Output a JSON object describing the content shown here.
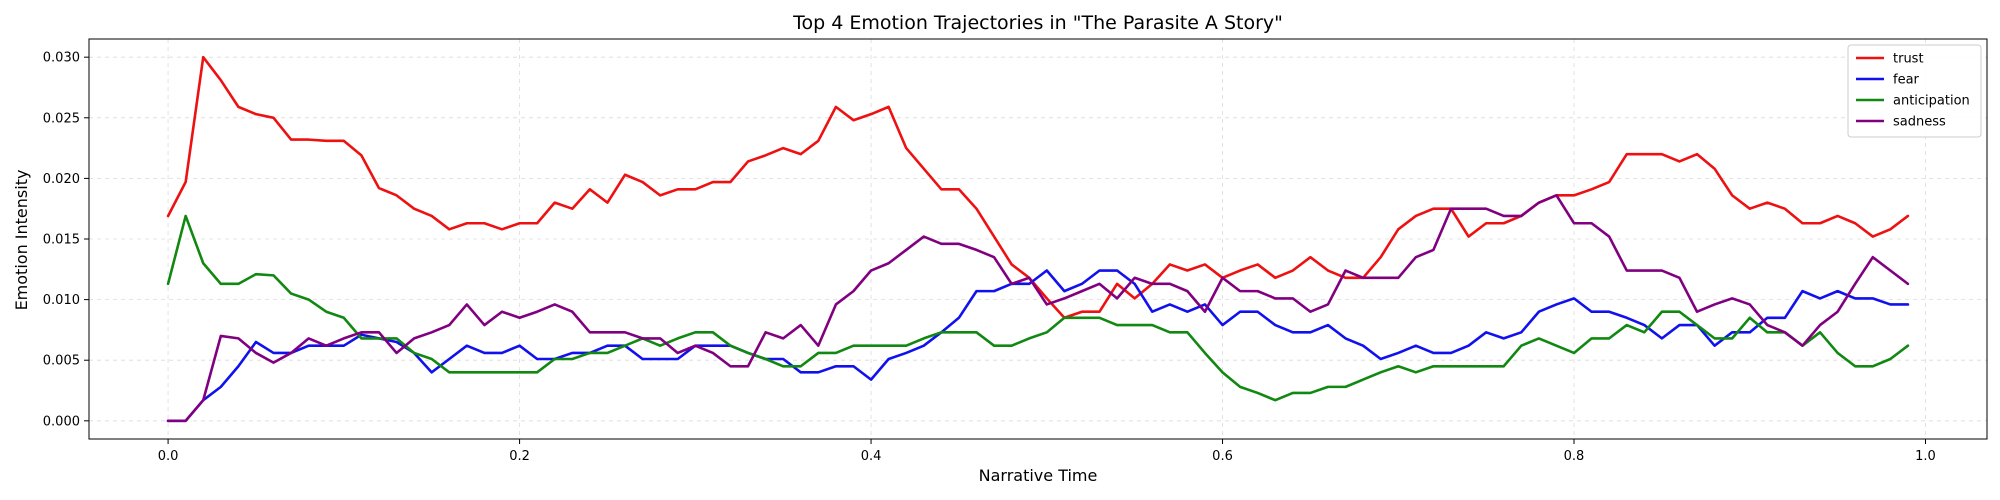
{
  "chart_data": {
    "type": "line",
    "title": "Top 4 Emotion Trajectories in \"The Parasite A Story\"",
    "xlabel": "Narrative Time",
    "ylabel": "Emotion Intensity",
    "xlim": [
      -0.045,
      1.035
    ],
    "ylim": [
      -0.0015,
      0.0315
    ],
    "xticks": [
      0.0,
      0.2,
      0.4,
      0.6,
      0.8,
      1.0
    ],
    "xtick_labels": [
      "0.0",
      "0.2",
      "0.4",
      "0.6",
      "0.8",
      "1.0"
    ],
    "yticks": [
      0.0,
      0.005,
      0.01,
      0.015,
      0.02,
      0.025,
      0.03
    ],
    "ytick_labels": [
      "0.000",
      "0.005",
      "0.010",
      "0.015",
      "0.020",
      "0.025",
      "0.030"
    ],
    "grid": true,
    "legend_position": "top-right",
    "x": [
      0.0,
      0.01,
      0.02,
      0.03,
      0.04,
      0.05,
      0.06,
      0.07,
      0.08,
      0.09,
      0.1,
      0.11,
      0.12,
      0.13,
      0.14,
      0.15,
      0.16,
      0.17,
      0.18,
      0.19,
      0.2,
      0.21,
      0.22,
      0.23,
      0.24,
      0.25,
      0.26,
      0.27,
      0.28,
      0.29,
      0.3,
      0.31,
      0.32,
      0.33,
      0.34,
      0.35,
      0.36,
      0.37,
      0.38,
      0.39,
      0.4,
      0.41,
      0.42,
      0.43,
      0.44,
      0.45,
      0.46,
      0.47,
      0.48,
      0.49,
      0.5,
      0.51,
      0.52,
      0.53,
      0.54,
      0.55,
      0.56,
      0.57,
      0.58,
      0.59,
      0.6,
      0.61,
      0.62,
      0.63,
      0.64,
      0.65,
      0.66,
      0.67,
      0.68,
      0.69,
      0.7,
      0.71,
      0.72,
      0.73,
      0.74,
      0.75,
      0.76,
      0.77,
      0.78,
      0.79,
      0.8,
      0.81,
      0.82,
      0.83,
      0.84,
      0.85,
      0.86,
      0.87,
      0.88,
      0.89,
      0.9,
      0.91,
      0.92,
      0.93,
      0.94,
      0.95,
      0.96,
      0.97,
      0.98,
      0.99
    ],
    "series": [
      {
        "name": "trust",
        "color": "#ee1111",
        "values": [
          0.0169,
          0.0197,
          0.03,
          0.0281,
          0.0259,
          0.0253,
          0.025,
          0.0232,
          0.0232,
          0.0231,
          0.0231,
          0.0219,
          0.0192,
          0.0186,
          0.0175,
          0.0169,
          0.0158,
          0.0163,
          0.0163,
          0.0158,
          0.0163,
          0.0163,
          0.018,
          0.0175,
          0.0191,
          0.018,
          0.0203,
          0.0197,
          0.0186,
          0.0191,
          0.0191,
          0.0197,
          0.0197,
          0.0214,
          0.0219,
          0.0225,
          0.022,
          0.0231,
          0.0259,
          0.0248,
          0.0253,
          0.0259,
          0.0225,
          0.0208,
          0.0191,
          0.0191,
          0.0175,
          0.0152,
          0.0129,
          0.0118,
          0.0101,
          0.0085,
          0.009,
          0.009,
          0.0113,
          0.0101,
          0.0113,
          0.0129,
          0.0124,
          0.0129,
          0.0118,
          0.0124,
          0.0129,
          0.0118,
          0.0124,
          0.0135,
          0.0124,
          0.0118,
          0.0118,
          0.0135,
          0.0158,
          0.0169,
          0.0175,
          0.0175,
          0.0152,
          0.0163,
          0.0163,
          0.0169,
          0.018,
          0.0186,
          0.0186,
          0.0191,
          0.0197,
          0.022,
          0.022,
          0.022,
          0.0214,
          0.022,
          0.0208,
          0.0186,
          0.0175,
          0.018,
          0.0175,
          0.0163,
          0.0163,
          0.0169,
          0.0163,
          0.0152,
          0.0158,
          0.0169
        ]
      },
      {
        "name": "fear",
        "color": "#1111ee",
        "values": [
          0.0,
          0.0,
          0.0017,
          0.0028,
          0.0045,
          0.0065,
          0.0056,
          0.0056,
          0.0062,
          0.0062,
          0.0062,
          0.0071,
          0.0068,
          0.0065,
          0.0056,
          0.004,
          0.0051,
          0.0062,
          0.0056,
          0.0056,
          0.0062,
          0.0051,
          0.0051,
          0.0056,
          0.0056,
          0.0062,
          0.0062,
          0.0051,
          0.0051,
          0.0051,
          0.0062,
          0.0062,
          0.0062,
          0.0056,
          0.0051,
          0.0051,
          0.004,
          0.004,
          0.0045,
          0.0045,
          0.0034,
          0.0051,
          0.0056,
          0.0062,
          0.0073,
          0.0085,
          0.0107,
          0.0107,
          0.0113,
          0.0113,
          0.0124,
          0.0107,
          0.0113,
          0.0124,
          0.0124,
          0.0113,
          0.009,
          0.0096,
          0.009,
          0.0096,
          0.0079,
          0.009,
          0.009,
          0.0079,
          0.0073,
          0.0073,
          0.0079,
          0.0068,
          0.0062,
          0.0051,
          0.0056,
          0.0062,
          0.0056,
          0.0056,
          0.0062,
          0.0073,
          0.0068,
          0.0073,
          0.009,
          0.0096,
          0.0101,
          0.009,
          0.009,
          0.0085,
          0.0079,
          0.0068,
          0.0079,
          0.0079,
          0.0062,
          0.0073,
          0.0073,
          0.0085,
          0.0085,
          0.0107,
          0.0101,
          0.0107,
          0.0101,
          0.0101,
          0.0096,
          0.0096
        ]
      },
      {
        "name": "anticipation",
        "color": "#118811",
        "values": [
          0.0113,
          0.0169,
          0.013,
          0.0113,
          0.0113,
          0.0121,
          0.012,
          0.0105,
          0.01,
          0.009,
          0.0085,
          0.0068,
          0.0068,
          0.0068,
          0.0056,
          0.0051,
          0.004,
          0.004,
          0.004,
          0.004,
          0.004,
          0.004,
          0.0051,
          0.0051,
          0.0056,
          0.0056,
          0.0062,
          0.0068,
          0.0062,
          0.0068,
          0.0073,
          0.0073,
          0.0062,
          0.0056,
          0.0051,
          0.0045,
          0.0045,
          0.0056,
          0.0056,
          0.0062,
          0.0062,
          0.0062,
          0.0062,
          0.0068,
          0.0073,
          0.0073,
          0.0073,
          0.0062,
          0.0062,
          0.0068,
          0.0073,
          0.0085,
          0.0085,
          0.0085,
          0.0079,
          0.0079,
          0.0079,
          0.0073,
          0.0073,
          0.0056,
          0.004,
          0.0028,
          0.0023,
          0.0017,
          0.0023,
          0.0023,
          0.0028,
          0.0028,
          0.0034,
          0.004,
          0.0045,
          0.004,
          0.0045,
          0.0045,
          0.0045,
          0.0045,
          0.0045,
          0.0062,
          0.0068,
          0.0062,
          0.0056,
          0.0068,
          0.0068,
          0.0079,
          0.0073,
          0.009,
          0.009,
          0.0079,
          0.0068,
          0.0068,
          0.0085,
          0.0073,
          0.0073,
          0.0062,
          0.0073,
          0.0056,
          0.0045,
          0.0045,
          0.0051,
          0.0062
        ]
      },
      {
        "name": "sadness",
        "color": "#800080",
        "values": [
          0.0,
          0.0,
          0.0017,
          0.007,
          0.0068,
          0.0056,
          0.0048,
          0.0056,
          0.0068,
          0.0062,
          0.0068,
          0.0073,
          0.0073,
          0.0056,
          0.0068,
          0.0073,
          0.0079,
          0.0096,
          0.0079,
          0.009,
          0.0085,
          0.009,
          0.0096,
          0.009,
          0.0073,
          0.0073,
          0.0073,
          0.0068,
          0.0068,
          0.0056,
          0.0062,
          0.0056,
          0.0045,
          0.0045,
          0.0073,
          0.0068,
          0.0079,
          0.0062,
          0.0096,
          0.0107,
          0.0124,
          0.013,
          0.0141,
          0.0152,
          0.0146,
          0.0146,
          0.0141,
          0.0135,
          0.0113,
          0.0118,
          0.0096,
          0.0101,
          0.0107,
          0.0113,
          0.0101,
          0.0118,
          0.0113,
          0.0113,
          0.0107,
          0.009,
          0.0118,
          0.0107,
          0.0107,
          0.0101,
          0.0101,
          0.009,
          0.0096,
          0.0124,
          0.0118,
          0.0118,
          0.0118,
          0.0135,
          0.0141,
          0.0175,
          0.0175,
          0.0175,
          0.0169,
          0.0169,
          0.018,
          0.0186,
          0.0163,
          0.0163,
          0.0152,
          0.0124,
          0.0124,
          0.0124,
          0.0118,
          0.009,
          0.0096,
          0.0101,
          0.0096,
          0.0079,
          0.0073,
          0.0062,
          0.0079,
          0.009,
          0.0113,
          0.0135,
          0.0124,
          0.0113
        ]
      }
    ]
  }
}
